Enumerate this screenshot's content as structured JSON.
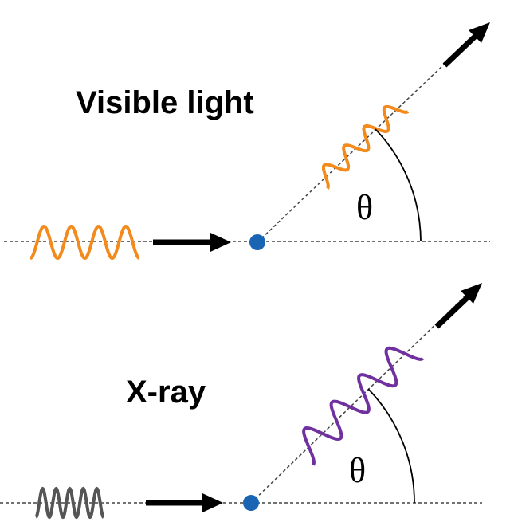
{
  "panels": [
    {
      "label": "Visible light",
      "angle_label": "θ"
    },
    {
      "label": "X-ray",
      "angle_label": "θ"
    }
  ]
}
